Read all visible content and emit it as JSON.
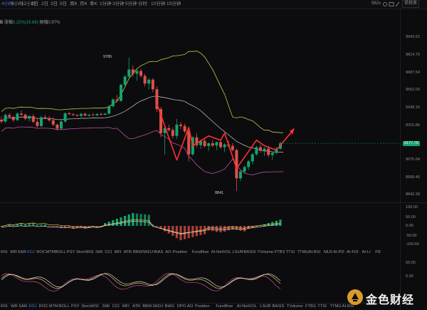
{
  "colors": {
    "up": "#13a36f",
    "down": "#e0504a",
    "upper_band": "#c9c44a",
    "mid_band": "#c8c8cc",
    "lower_band": "#c24fa6",
    "ma_yellow": "#e6c84a",
    "ma_white": "#d8d8d8",
    "arrow": "#ff3030",
    "accent": "#3d7bd8"
  },
  "toolbar": {
    "timeframes": [
      "4小时",
      "6小时",
      "12小时",
      "1日",
      "2日",
      "3日",
      "5日",
      "周K",
      "月K",
      "季K",
      "1分钟",
      "3分钟",
      "5分钟",
      "分时",
      "10分钟",
      "15分钟"
    ],
    "active_timeframe": 0,
    "zoom": "562x",
    "icons": [
      "gear-icon",
      "camera-icon",
      "pen-icon",
      "fullscreen-icon",
      "layout-icon"
    ],
    "chart_type": "单就表"
  },
  "info": {
    "prefix": "B",
    "change_label": "涨幅",
    "change_value": "0.22%(19.69)",
    "amp_label": "振幅",
    "amp_value": "0.97%"
  },
  "price_axis": [
    "9943.52",
    "9814.70",
    "9687.54",
    "9562.03",
    "9438.16",
    "9315.86",
    "9076.04",
    "8958.45",
    "8842.38"
  ],
  "current_price": "9177.78",
  "annotations": {
    "high": "9785",
    "low": "8841"
  },
  "macd_axis": [
    "100.00",
    "50.00",
    "0.00",
    "-50.00",
    "-100.00"
  ],
  "kdj_axis": [
    "50.00",
    "0.00"
  ],
  "indicators_row1": [
    "EMV",
    "RSI",
    "WR",
    "SAR",
    "KDJ",
    "ROC",
    "MTM",
    "BOLL",
    "PSY",
    "StochRSI",
    "CCI",
    "MFI",
    "ATR",
    "BBW",
    "SKDJ",
    "BIAS",
    "DPO",
    "AO",
    "Position",
    "Fundflow",
    "AI-NetVOL",
    "LSUR",
    "BASIS",
    "TVolume"
  ],
  "indicators_row2": [
    "RSI",
    "WR",
    "SAR",
    "KDJ",
    "ROC",
    "MTM",
    "BOLL",
    "PSY",
    "StochRSI",
    "SMI",
    "CCI",
    "MFI",
    "ATR",
    "BBW",
    "SKDJ",
    "BIAS",
    "AO",
    "Position",
    "Fundflow",
    "AI-NetVOL",
    "LSUR",
    "BASIS",
    "TVolume",
    "FTBS",
    "TTSI",
    "TTMU",
    "AI-BSI",
    "MLR",
    "AI-PD",
    "AI-FDI",
    "AI-LI",
    "FR"
  ],
  "indicators_row3": [
    "RSI",
    "WR",
    "SAR",
    "KDJ",
    "ROC",
    "MTM",
    "BOLL",
    "PSY",
    "StochRSI",
    "SMI",
    "CCI",
    "MFI",
    "ATR",
    "BBW",
    "SKDJ",
    "BIAS",
    "DPO",
    "AO",
    "Position",
    "Fundflow",
    "AI-NetVOL",
    "LSUR",
    "BASIS",
    "TVolume",
    "FTBS",
    "TTSI",
    "TTMU",
    "AI-BSI"
  ],
  "active_indicator": "KDJ",
  "logo": {
    "text": "金色财经"
  },
  "chart_data": {
    "type": "candlestick",
    "title": "",
    "ylim": [
      8780,
      10000
    ],
    "candles": [
      [
        9345,
        9368,
        9318,
        9332
      ],
      [
        9332,
        9388,
        9320,
        9378
      ],
      [
        9378,
        9392,
        9360,
        9365
      ],
      [
        9365,
        9372,
        9330,
        9342
      ],
      [
        9342,
        9396,
        9336,
        9388
      ],
      [
        9388,
        9410,
        9372,
        9380
      ],
      [
        9380,
        9390,
        9340,
        9352
      ],
      [
        9352,
        9378,
        9330,
        9370
      ],
      [
        9370,
        9384,
        9320,
        9330
      ],
      [
        9330,
        9355,
        9290,
        9300
      ],
      [
        9300,
        9372,
        9292,
        9362
      ],
      [
        9362,
        9380,
        9348,
        9356
      ],
      [
        9356,
        9372,
        9330,
        9340
      ],
      [
        9340,
        9360,
        9298,
        9310
      ],
      [
        9310,
        9318,
        9268,
        9282
      ],
      [
        9282,
        9340,
        9276,
        9332
      ],
      [
        9332,
        9398,
        9324,
        9390
      ],
      [
        9390,
        9402,
        9378,
        9384
      ],
      [
        9384,
        9392,
        9372,
        9378
      ],
      [
        9378,
        9384,
        9366,
        9372
      ],
      [
        9372,
        9392,
        9362,
        9386
      ],
      [
        9386,
        9396,
        9370,
        9374
      ],
      [
        9374,
        9386,
        9364,
        9380
      ],
      [
        9380,
        9392,
        9372,
        9376
      ],
      [
        9376,
        9390,
        9368,
        9385
      ],
      [
        9385,
        9395,
        9376,
        9380
      ],
      [
        9380,
        9392,
        9376,
        9388
      ],
      [
        9388,
        9450,
        9382,
        9440
      ],
      [
        9440,
        9495,
        9432,
        9488
      ],
      [
        9488,
        9520,
        9470,
        9478
      ],
      [
        9478,
        9600,
        9470,
        9592
      ],
      [
        9592,
        9660,
        9580,
        9650
      ],
      [
        9650,
        9785,
        9640,
        9700
      ],
      [
        9700,
        9730,
        9650,
        9670
      ],
      [
        9670,
        9700,
        9620,
        9690
      ],
      [
        9690,
        9705,
        9640,
        9655
      ],
      [
        9655,
        9670,
        9580,
        9600
      ],
      [
        9600,
        9640,
        9560,
        9628
      ],
      [
        9628,
        9640,
        9540,
        9560
      ],
      [
        9560,
        9580,
        9400,
        9420
      ],
      [
        9420,
        9435,
        9220,
        9250
      ],
      [
        9250,
        9300,
        9100,
        9285
      ],
      [
        9285,
        9310,
        9260,
        9272
      ],
      [
        9272,
        9290,
        9210,
        9230
      ],
      [
        9230,
        9350,
        9210,
        9310
      ],
      [
        9310,
        9330,
        9278,
        9300
      ],
      [
        9300,
        9316,
        9250,
        9262
      ],
      [
        9262,
        9282,
        9050,
        9100
      ],
      [
        9100,
        9230,
        9090,
        9220
      ],
      [
        9220,
        9250,
        9150,
        9165
      ],
      [
        9165,
        9205,
        9140,
        9195
      ],
      [
        9195,
        9215,
        9150,
        9158
      ],
      [
        9158,
        9185,
        9125,
        9178
      ],
      [
        9178,
        9200,
        9150,
        9162
      ],
      [
        9162,
        9190,
        9130,
        9186
      ],
      [
        9186,
        9198,
        9140,
        9150
      ],
      [
        9150,
        9178,
        9115,
        9170
      ],
      [
        9170,
        9196,
        9148,
        9160
      ],
      [
        9160,
        9180,
        9120,
        9130
      ],
      [
        9130,
        9140,
        8841,
        8930
      ],
      [
        8930,
        8990,
        8910,
        8978
      ],
      [
        8978,
        9020,
        8960,
        9010
      ],
      [
        9010,
        9060,
        8990,
        9050
      ],
      [
        9050,
        9110,
        9030,
        9100
      ],
      [
        9100,
        9160,
        9090,
        9150
      ],
      [
        9150,
        9170,
        9110,
        9125
      ],
      [
        9125,
        9150,
        9090,
        9140
      ],
      [
        9140,
        9160,
        9080,
        9095
      ],
      [
        9095,
        9120,
        9060,
        9110
      ],
      [
        9110,
        9150,
        9100,
        9140
      ],
      [
        9140,
        9190,
        9130,
        9178
      ]
    ]
  }
}
